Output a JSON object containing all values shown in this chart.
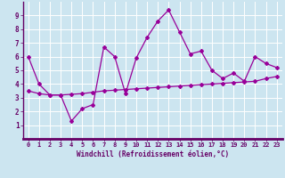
{
  "xlabel": "Windchill (Refroidissement éolien,°C)",
  "x_values": [
    0,
    1,
    2,
    3,
    4,
    5,
    6,
    7,
    8,
    9,
    10,
    11,
    12,
    13,
    14,
    15,
    16,
    17,
    18,
    19,
    20,
    21,
    22,
    23
  ],
  "line1_y": [
    6.0,
    4.0,
    3.2,
    3.2,
    1.3,
    2.2,
    2.5,
    6.7,
    6.0,
    3.3,
    5.9,
    7.4,
    8.6,
    9.4,
    7.8,
    6.2,
    6.4,
    5.0,
    4.4,
    4.8,
    4.2,
    6.0,
    5.5,
    5.2
  ],
  "line2_y": [
    3.5,
    3.3,
    3.2,
    3.2,
    3.25,
    3.3,
    3.4,
    3.5,
    3.55,
    3.6,
    3.65,
    3.7,
    3.75,
    3.8,
    3.85,
    3.9,
    3.95,
    4.0,
    4.05,
    4.1,
    4.15,
    4.2,
    4.4,
    4.55
  ],
  "line_color": "#990099",
  "bg_color": "#cce5f0",
  "grid_color": "#ffffff",
  "axis_bar_color": "#660066",
  "text_color": "#660066",
  "ylim": [
    0,
    10
  ],
  "xlim": [
    -0.5,
    23.5
  ],
  "yticks": [
    1,
    2,
    3,
    4,
    5,
    6,
    7,
    8,
    9
  ],
  "xticks": [
    0,
    1,
    2,
    3,
    4,
    5,
    6,
    7,
    8,
    9,
    10,
    11,
    12,
    13,
    14,
    15,
    16,
    17,
    18,
    19,
    20,
    21,
    22,
    23
  ],
  "xlabel_fontsize": 5.5,
  "tick_fontsize": 5.0
}
